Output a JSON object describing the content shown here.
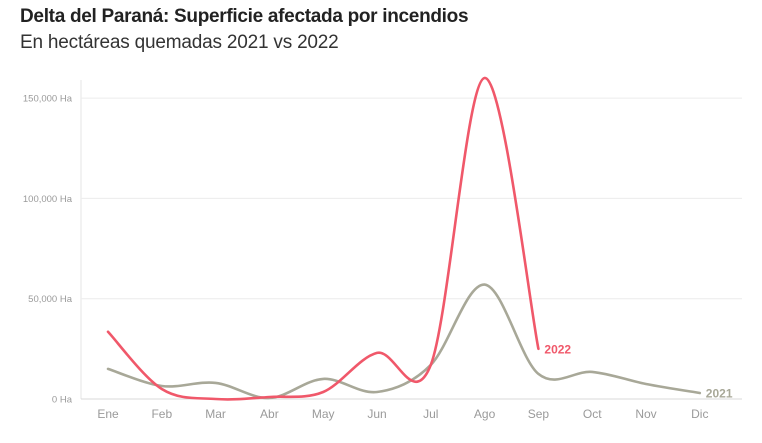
{
  "title": "Delta del Paraná: Superficie afectada por incendios",
  "subtitle": "En hectáreas quemadas 2021 vs 2022",
  "chart_data": {
    "type": "line",
    "title": "Delta del Paraná: Superficie afectada por incendios",
    "subtitle": "En hectáreas quemadas 2021 vs 2022",
    "xlabel": "",
    "ylabel": "",
    "ylim": [
      0,
      160000
    ],
    "yticks": [
      0,
      50000,
      100000,
      150000
    ],
    "ytick_labels": [
      "0 Ha",
      "50,000 Ha",
      "100,000 Ha",
      "150,000 Ha"
    ],
    "categories": [
      "Ene",
      "Feb",
      "Mar",
      "Abr",
      "May",
      "Jun",
      "Jul",
      "Ago",
      "Sep",
      "Oct",
      "Nov",
      "Dic"
    ],
    "grid": "horizontal",
    "series": [
      {
        "name": "2021",
        "color": "#a8a898",
        "values": [
          15000,
          6500,
          8000,
          500,
          10000,
          3500,
          17000,
          57000,
          12500,
          13500,
          7500,
          3000
        ]
      },
      {
        "name": "2022",
        "color": "#f0586a",
        "values": [
          33500,
          5000,
          0,
          1000,
          3500,
          23000,
          17000,
          160000,
          25000,
          null,
          null,
          null
        ]
      }
    ]
  }
}
